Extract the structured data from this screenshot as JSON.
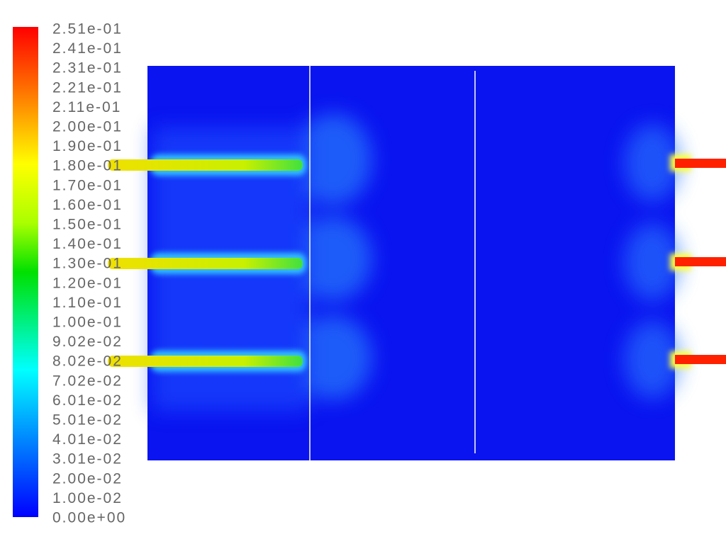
{
  "colorbar": {
    "labels": [
      "2.51e-01",
      "2.41e-01",
      "2.31e-01",
      "2.21e-01",
      "2.11e-01",
      "2.00e-01",
      "1.90e-01",
      "1.80e-01",
      "1.70e-01",
      "1.60e-01",
      "1.50e-01",
      "1.40e-01",
      "1.30e-01",
      "1.20e-01",
      "1.10e-01",
      "1.00e-01",
      "9.02e-02",
      "8.02e-02",
      "7.02e-02",
      "6.01e-02",
      "5.01e-02",
      "4.01e-02",
      "3.01e-02",
      "2.00e-02",
      "1.00e-02",
      "0.00e+00"
    ]
  }
}
